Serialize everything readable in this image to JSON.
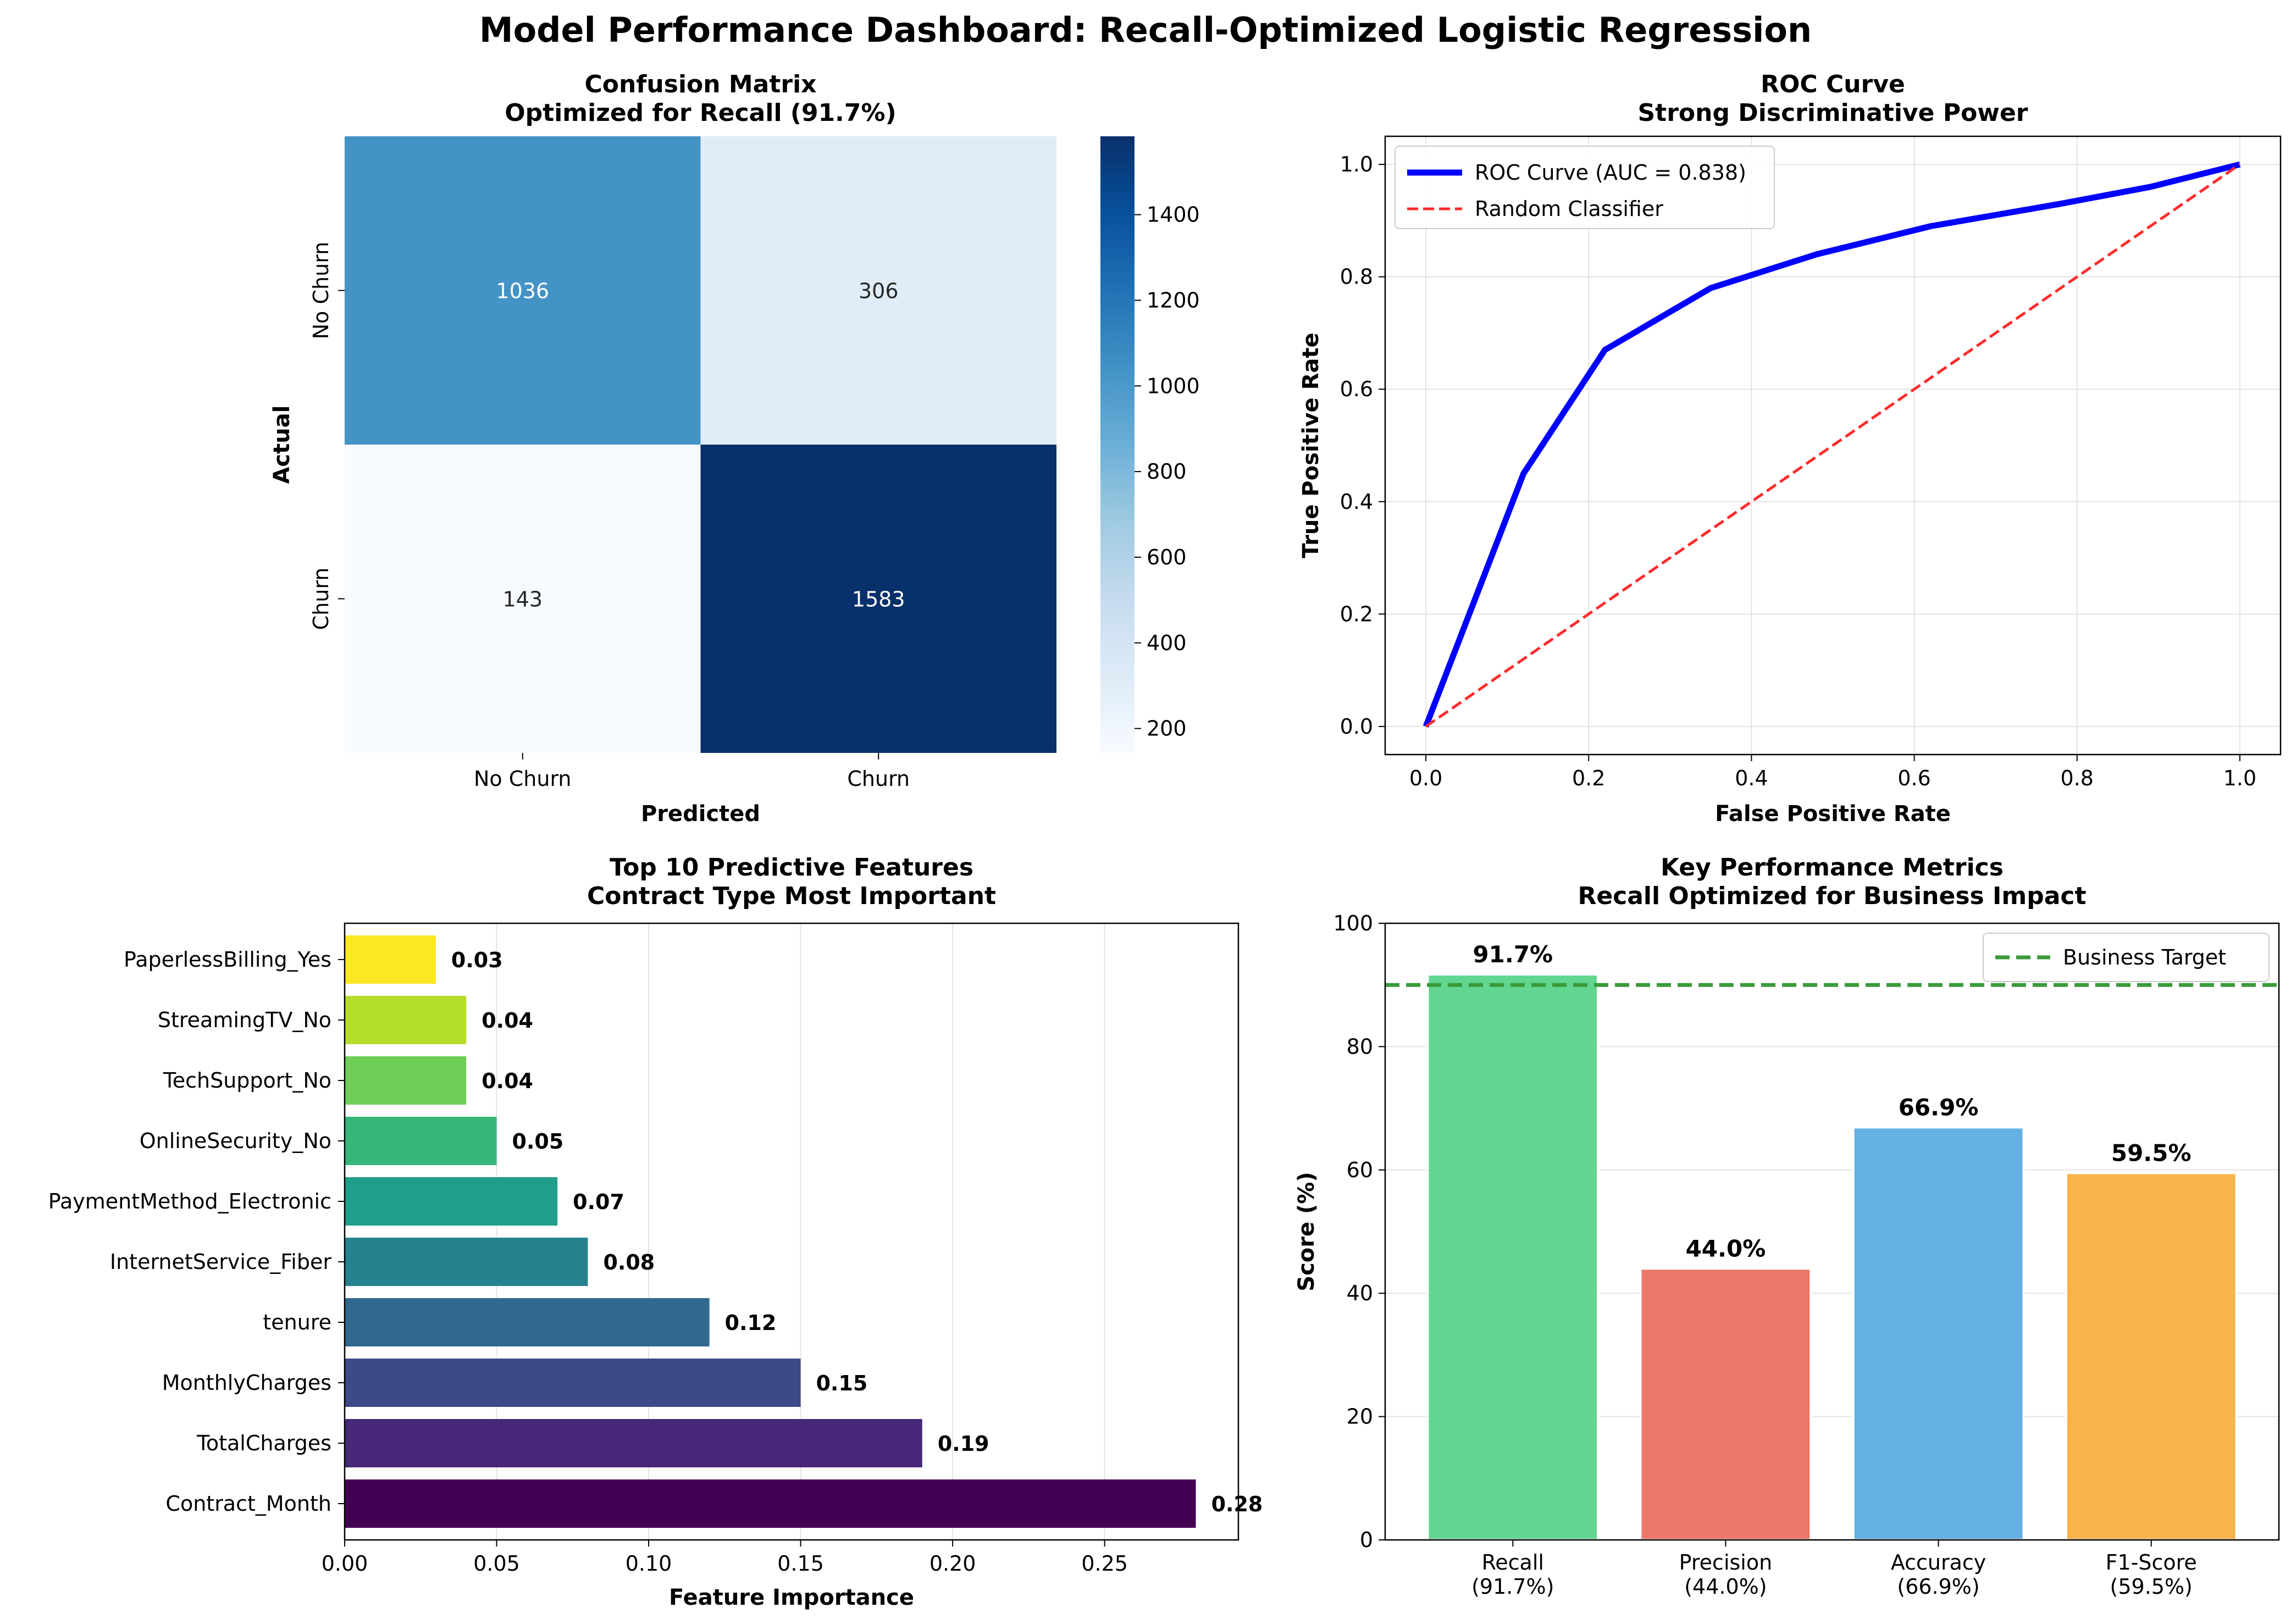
{
  "suptitle": "Model Performance Dashboard: Recall-Optimized Logistic Regression",
  "chart_data": [
    {
      "type": "heatmap",
      "title": "Confusion Matrix",
      "subtitle": "Optimized for Recall (91.7%)",
      "xlabel": "Predicted",
      "ylabel": "Actual",
      "row_labels": [
        "No Churn",
        "Churn"
      ],
      "col_labels": [
        "No Churn",
        "Churn"
      ],
      "values": [
        [
          1036,
          306
        ],
        [
          143,
          1583
        ]
      ],
      "colormap": "Blues",
      "colorbar": {
        "ticks": [
          200,
          400,
          600,
          800,
          1000,
          1200,
          1400
        ],
        "range": [
          143,
          1583
        ]
      },
      "colors": {
        "low": "#f7fbff",
        "high": "#08306b"
      }
    },
    {
      "type": "line",
      "title": "ROC Curve",
      "subtitle": "Strong Discriminative Power",
      "xlabel": "False Positive Rate",
      "ylabel": "True Positive Rate",
      "xlim": [
        -0.05,
        1.05
      ],
      "ylim": [
        -0.05,
        1.05
      ],
      "xticks": [
        "0.0",
        "0.2",
        "0.4",
        "0.6",
        "0.8",
        "1.0"
      ],
      "yticks": [
        "0.0",
        "0.2",
        "0.4",
        "0.6",
        "0.8",
        "1.0"
      ],
      "grid": true,
      "legend_position": "top-left",
      "series": [
        {
          "name": "ROC Curve (AUC = 0.838)",
          "color": "#0000ff",
          "style": "solid",
          "x": [
            0.0,
            0.12,
            0.22,
            0.35,
            0.48,
            0.62,
            0.78,
            0.89,
            1.0
          ],
          "y": [
            0.0,
            0.45,
            0.67,
            0.78,
            0.84,
            0.89,
            0.93,
            0.96,
            1.0
          ]
        },
        {
          "name": "Random Classifier",
          "color": "#ff2b2b",
          "style": "dashed",
          "x": [
            0.0,
            1.0
          ],
          "y": [
            0.0,
            1.0
          ]
        }
      ]
    },
    {
      "type": "bar",
      "orientation": "horizontal",
      "title": "Top 10 Predictive Features",
      "subtitle": "Contract Type Most Important",
      "xlabel": "Feature Importance",
      "xlim": [
        0,
        0.294
      ],
      "xticks": [
        "0.00",
        "0.05",
        "0.10",
        "0.15",
        "0.20",
        "0.25"
      ],
      "grid": true,
      "categories": [
        "Contract_Month",
        "TotalCharges",
        "MonthlyCharges",
        "tenure",
        "InternetService_Fiber",
        "PaymentMethod_Electronic",
        "OnlineSecurity_No",
        "TechSupport_No",
        "StreamingTV_No",
        "PaperlessBilling_Yes"
      ],
      "values": [
        0.28,
        0.19,
        0.15,
        0.12,
        0.08,
        0.07,
        0.05,
        0.04,
        0.04,
        0.03
      ],
      "value_labels": [
        "0.28",
        "0.19",
        "0.15",
        "0.12",
        "0.08",
        "0.07",
        "0.05",
        "0.04",
        "0.04",
        "0.03"
      ],
      "colors": [
        "#440154",
        "#482878",
        "#3e4989",
        "#31688e",
        "#26828e",
        "#1f9e89",
        "#35b779",
        "#6ece58",
        "#b5de2b",
        "#fde725"
      ]
    },
    {
      "type": "bar",
      "title": "Key Performance Metrics",
      "subtitle": "Recall Optimized for Business Impact",
      "ylabel": "Score (%)",
      "ylim": [
        0,
        100
      ],
      "yticks": [
        "0",
        "20",
        "40",
        "60",
        "80",
        "100"
      ],
      "grid": true,
      "legend_position": "top-right",
      "categories": [
        "Recall",
        "Precision",
        "Accuracy",
        "F1-Score"
      ],
      "category_sublabels": [
        "(91.7%)",
        "(44.0%)",
        "(66.9%)",
        "(59.5%)"
      ],
      "values": [
        91.7,
        44.0,
        66.9,
        59.5
      ],
      "value_labels": [
        "91.7%",
        "44.0%",
        "66.9%",
        "59.5%"
      ],
      "colors": [
        "#5ad48a",
        "#ec7063",
        "#5dade2",
        "#f5b041"
      ],
      "reference_line": {
        "name": "Business Target",
        "value": 90,
        "color": "#3a9a3a",
        "style": "dashed"
      }
    }
  ]
}
